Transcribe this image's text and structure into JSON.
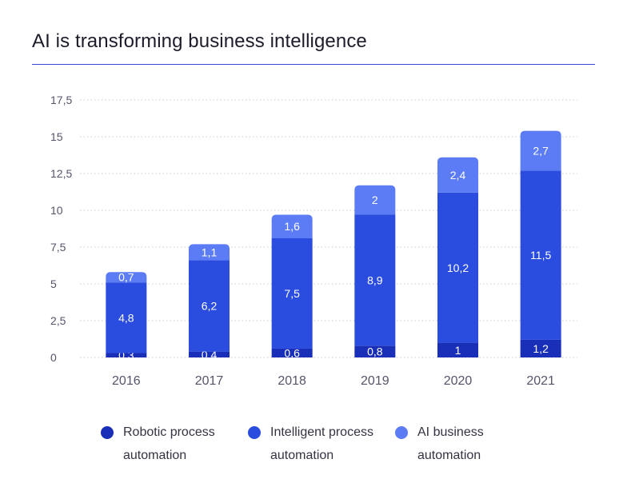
{
  "title": "AI is transforming business intelligence",
  "colors": {
    "robotic": "#1a2fb8",
    "intelligent": "#2a4de0",
    "ai_business": "#5b7cf5",
    "title_rule": "#2f49d1"
  },
  "chart_data": {
    "type": "bar",
    "stacked": true,
    "title": "AI is transforming business intelligence",
    "xlabel": "",
    "ylabel": "",
    "categories": [
      "2016",
      "2017",
      "2018",
      "2019",
      "2020",
      "2021"
    ],
    "ylim": [
      0,
      17.5
    ],
    "yticks": [
      0,
      2.5,
      5,
      7.5,
      10,
      12.5,
      15,
      17.5
    ],
    "ytick_labels": [
      "0",
      "2,5",
      "5",
      "7,5",
      "10",
      "12,5",
      "15",
      "17,5"
    ],
    "grid": "horizontal dotted",
    "legend_position": "bottom",
    "series": [
      {
        "name": "Robotic process automation",
        "values": [
          0.3,
          0.4,
          0.6,
          0.8,
          1,
          1.2
        ],
        "labels": [
          "0,3",
          "0,4",
          "0,6",
          "0,8",
          "1",
          "1,2"
        ],
        "color": "#1a2fb8"
      },
      {
        "name": "Intelligent process automation",
        "values": [
          4.8,
          6.2,
          7.5,
          8.9,
          10.2,
          11.5
        ],
        "labels": [
          "4,8",
          "6,2",
          "7,5",
          "8,9",
          "10,2",
          "11,5"
        ],
        "color": "#2a4de0"
      },
      {
        "name": "AI business automation",
        "values": [
          0.7,
          1.1,
          1.6,
          2,
          2.4,
          2.7
        ],
        "labels": [
          "0,7",
          "1,1",
          "1,6",
          "2",
          "2,4",
          "2,7"
        ],
        "color": "#5b7cf5"
      }
    ]
  },
  "legend": [
    {
      "line1": "Robotic process",
      "line2": "automation",
      "color": "#1a2fb8"
    },
    {
      "line1": "Intelligent process",
      "line2": "automation",
      "color": "#2a4de0"
    },
    {
      "line1": "AI business",
      "line2": "automation",
      "color": "#5b7cf5"
    }
  ]
}
